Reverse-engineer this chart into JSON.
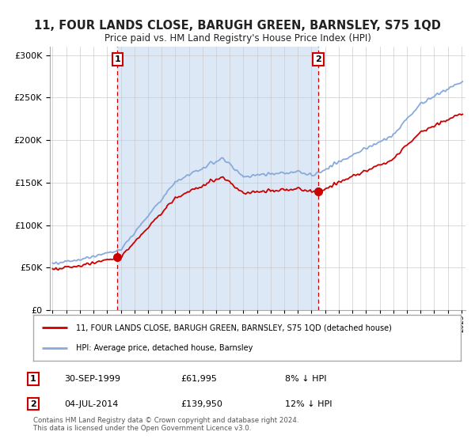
{
  "title": "11, FOUR LANDS CLOSE, BARUGH GREEN, BARNSLEY, S75 1QD",
  "subtitle": "Price paid vs. HM Land Registry's House Price Index (HPI)",
  "sale1_label": "30-SEP-1999",
  "sale1_price": 61995,
  "sale1_price_str": "£61,995",
  "sale1_hpi_diff": "8% ↓ HPI",
  "sale2_label": "04-JUL-2014",
  "sale2_price": 139950,
  "sale2_price_str": "£139,950",
  "sale2_hpi_diff": "12% ↓ HPI",
  "legend_line1": "11, FOUR LANDS CLOSE, BARUGH GREEN, BARNSLEY, S75 1QD (detached house)",
  "legend_line2": "HPI: Average price, detached house, Barnsley",
  "footer": "Contains HM Land Registry data © Crown copyright and database right 2024.\nThis data is licensed under the Open Government Licence v3.0.",
  "sale_color": "#cc0000",
  "hpi_color": "#88aadd",
  "vline_color": "#cc0000",
  "shade_color": "#dce8f5",
  "ylim_max": 310000,
  "ylim_min": 0,
  "background_color": "#ffffff",
  "grid_color": "#cccccc",
  "t_sale1": 1999.75,
  "t_sale2": 2014.5
}
